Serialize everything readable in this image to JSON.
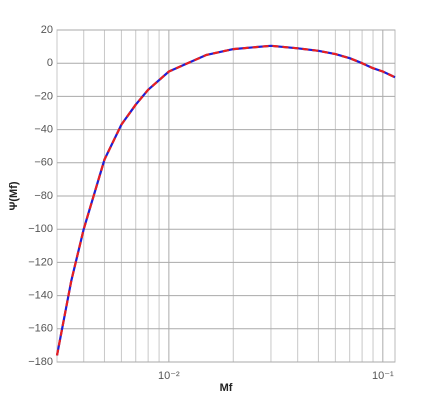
{
  "chart_data": {
    "type": "line",
    "xlabel": "Mf",
    "ylabel": "Ψ(Mf)",
    "xscale": "log",
    "x": [
      0.003,
      0.0035,
      0.004,
      0.005,
      0.006,
      0.007,
      0.008,
      0.01,
      0.015,
      0.02,
      0.03,
      0.04,
      0.05,
      0.06,
      0.07,
      0.08,
      0.09,
      0.1,
      0.114
    ],
    "series": [
      {
        "color": "#1f1fd6",
        "dash": false,
        "values": [
          -176,
          -131,
          -100,
          -58,
          -37,
          -25,
          -16,
          -5,
          5,
          8.5,
          10.5,
          9,
          7.5,
          5.5,
          3,
          0,
          -3,
          -5,
          -8.5
        ]
      },
      {
        "color": "#e8201f",
        "dash": true,
        "values": [
          -176,
          -131,
          -100,
          -58,
          -37,
          -25,
          -16,
          -5,
          5,
          8.5,
          10.5,
          9,
          7.5,
          5.5,
          3,
          0,
          -3,
          -5,
          -8.5
        ]
      }
    ],
    "xlim": [
      0.003,
      0.114
    ],
    "ylim": [
      -180,
      20
    ],
    "xticks": [
      {
        "value": 0.01,
        "label": "10⁻²"
      },
      {
        "value": 0.1,
        "label": "10⁻¹"
      }
    ],
    "xminorticks": [
      0.003,
      0.004,
      0.005,
      0.006,
      0.007,
      0.008,
      0.009,
      0.02,
      0.03,
      0.04,
      0.05,
      0.06,
      0.07,
      0.08,
      0.09
    ],
    "yticks": [
      {
        "value": -180,
        "label": "−180"
      },
      {
        "value": -160,
        "label": "−160"
      },
      {
        "value": -140,
        "label": "−140"
      },
      {
        "value": -120,
        "label": "−120"
      },
      {
        "value": -100,
        "label": "−100"
      },
      {
        "value": -80,
        "label": "−80"
      },
      {
        "value": -60,
        "label": "−60"
      },
      {
        "value": -40,
        "label": "−40"
      },
      {
        "value": -20,
        "label": "−20"
      },
      0,
      20
    ],
    "grid": true
  }
}
